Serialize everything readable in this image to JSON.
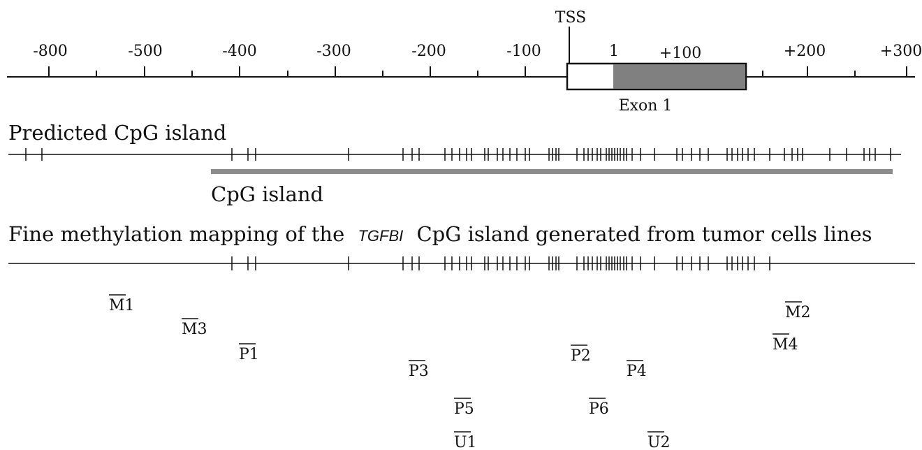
{
  "scale": {
    "ticks": [
      "-800",
      "-500",
      "-400",
      "-300",
      "-200",
      "-100",
      "1",
      "+100",
      "+200",
      "+300"
    ],
    "tss_label": "TSS",
    "exon_label": "Exon 1"
  },
  "predicted": {
    "title": "Predicted CpG island"
  },
  "island": {
    "label": "CpG island",
    "bar_color": "#8c8c8c"
  },
  "fine_map": {
    "title_before": "Fine methylation mapping of the",
    "gene": "TGFBI",
    "title_after": "CpG island generated from tumor cells lines"
  },
  "primers": [
    {
      "name": "M1"
    },
    {
      "name": "M3"
    },
    {
      "name": "P1"
    },
    {
      "name": "P3"
    },
    {
      "name": "P5"
    },
    {
      "name": "U1"
    },
    {
      "name": "P2"
    },
    {
      "name": "P6"
    },
    {
      "name": "P4"
    },
    {
      "name": "U2"
    },
    {
      "name": "M2"
    },
    {
      "name": "M4"
    }
  ],
  "colors": {
    "line": "#111111",
    "exon_fill": "#808080"
  }
}
